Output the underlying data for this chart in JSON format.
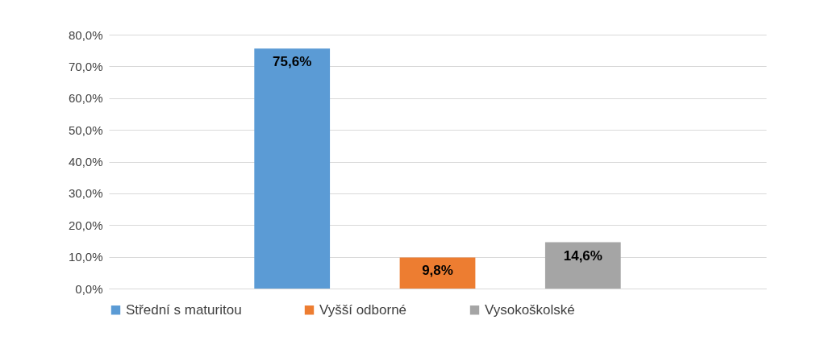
{
  "chart_data": {
    "type": "bar",
    "categories": [
      null
    ],
    "series": [
      {
        "name": "Střední s maturitou",
        "color": "#5b9bd5",
        "values": [
          75.6
        ],
        "value_labels": [
          "75,6%"
        ]
      },
      {
        "name": "Vyšší odborné",
        "color": "#ed7d31",
        "values": [
          9.8
        ],
        "value_labels": [
          "9,8%"
        ]
      },
      {
        "name": "Vysokoškolské",
        "color": "#a5a5a5",
        "values": [
          14.6
        ],
        "value_labels": [
          "14,6%"
        ]
      }
    ],
    "ylim": [
      0,
      80
    ],
    "yticks": [
      {
        "value": 0,
        "label": "0,0%"
      },
      {
        "value": 10,
        "label": "10,0%"
      },
      {
        "value": 20,
        "label": "20,0%"
      },
      {
        "value": 30,
        "label": "30,0%"
      },
      {
        "value": 40,
        "label": "40,0%"
      },
      {
        "value": 50,
        "label": "50,0%"
      },
      {
        "value": 60,
        "label": "60,0%"
      },
      {
        "value": 70,
        "label": "70,0%"
      },
      {
        "value": 80,
        "label": "80,0%"
      }
    ],
    "grid": "y",
    "legend": "bottom"
  }
}
